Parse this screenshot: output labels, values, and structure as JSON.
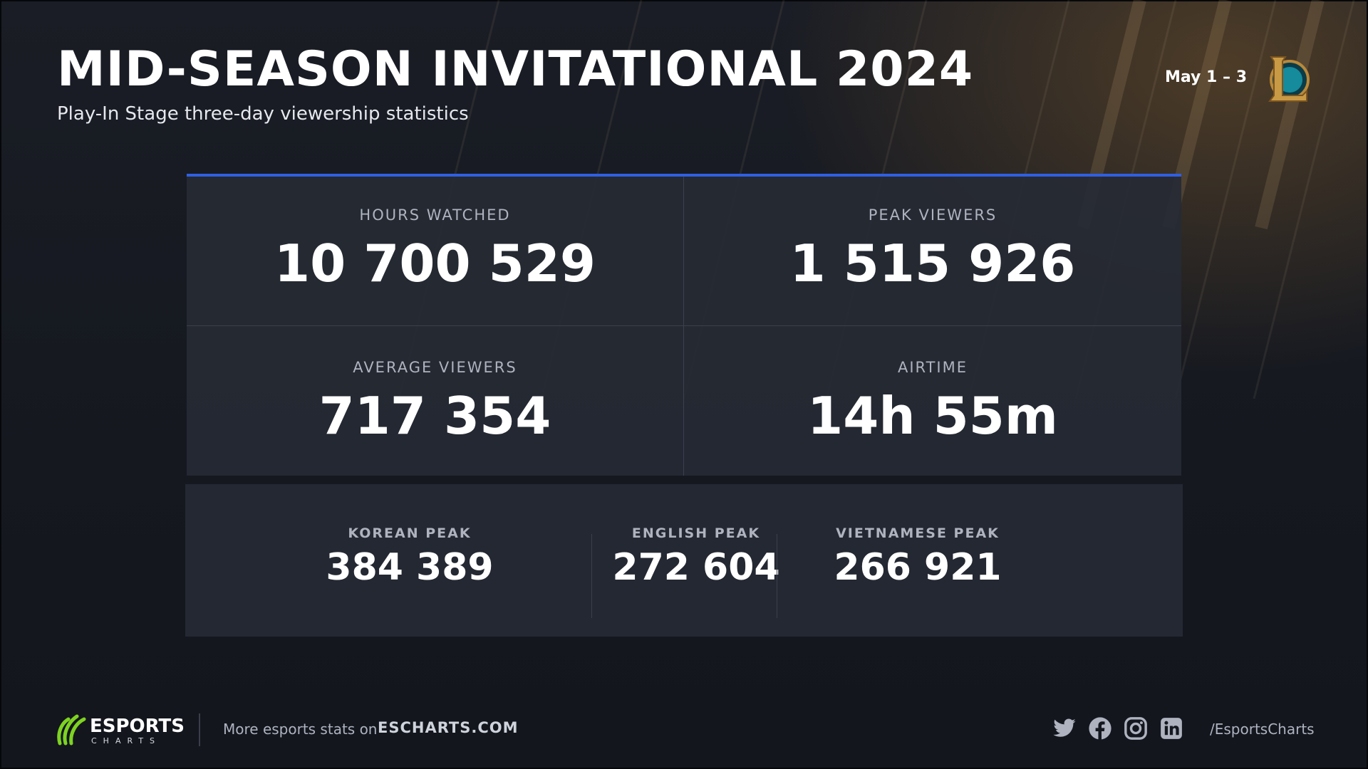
{
  "header": {
    "title": "MID-SEASON INVITATIONAL 2024",
    "subtitle": "Play-In Stage three-day viewership statistics",
    "date_range": "May 1 – 3",
    "game_logo_icon": "league-of-legends-logo-icon"
  },
  "stats": {
    "hours_watched": {
      "label": "HOURS WATCHED",
      "value": "10 700 529"
    },
    "peak_viewers": {
      "label": "PEAK VIEWERS",
      "value": "1 515 926"
    },
    "average_viewers": {
      "label": "AVERAGE VIEWERS",
      "value": "717 354"
    },
    "airtime": {
      "label": "AIRTIME",
      "value": "14h 55m"
    }
  },
  "language_peaks": [
    {
      "label": "KOREAN PEAK",
      "value": "384 389"
    },
    {
      "label": "ENGLISH PEAK",
      "value": "272 604"
    },
    {
      "label": "VIETNAMESE PEAK",
      "value": "266 921"
    }
  ],
  "footer": {
    "brand_name": "ESPORTS",
    "brand_sub": "CHARTS",
    "more_text": "More esports stats on",
    "link": "ESCHARTS.COM",
    "social_icons": [
      "twitter-icon",
      "facebook-icon",
      "instagram-icon",
      "linkedin-icon"
    ],
    "handle": "/EsportsCharts"
  },
  "colors": {
    "accent_blue": "#2f5fe3",
    "brand_green": "#7ed321",
    "background": "#14171f",
    "panel": "#262a34"
  }
}
